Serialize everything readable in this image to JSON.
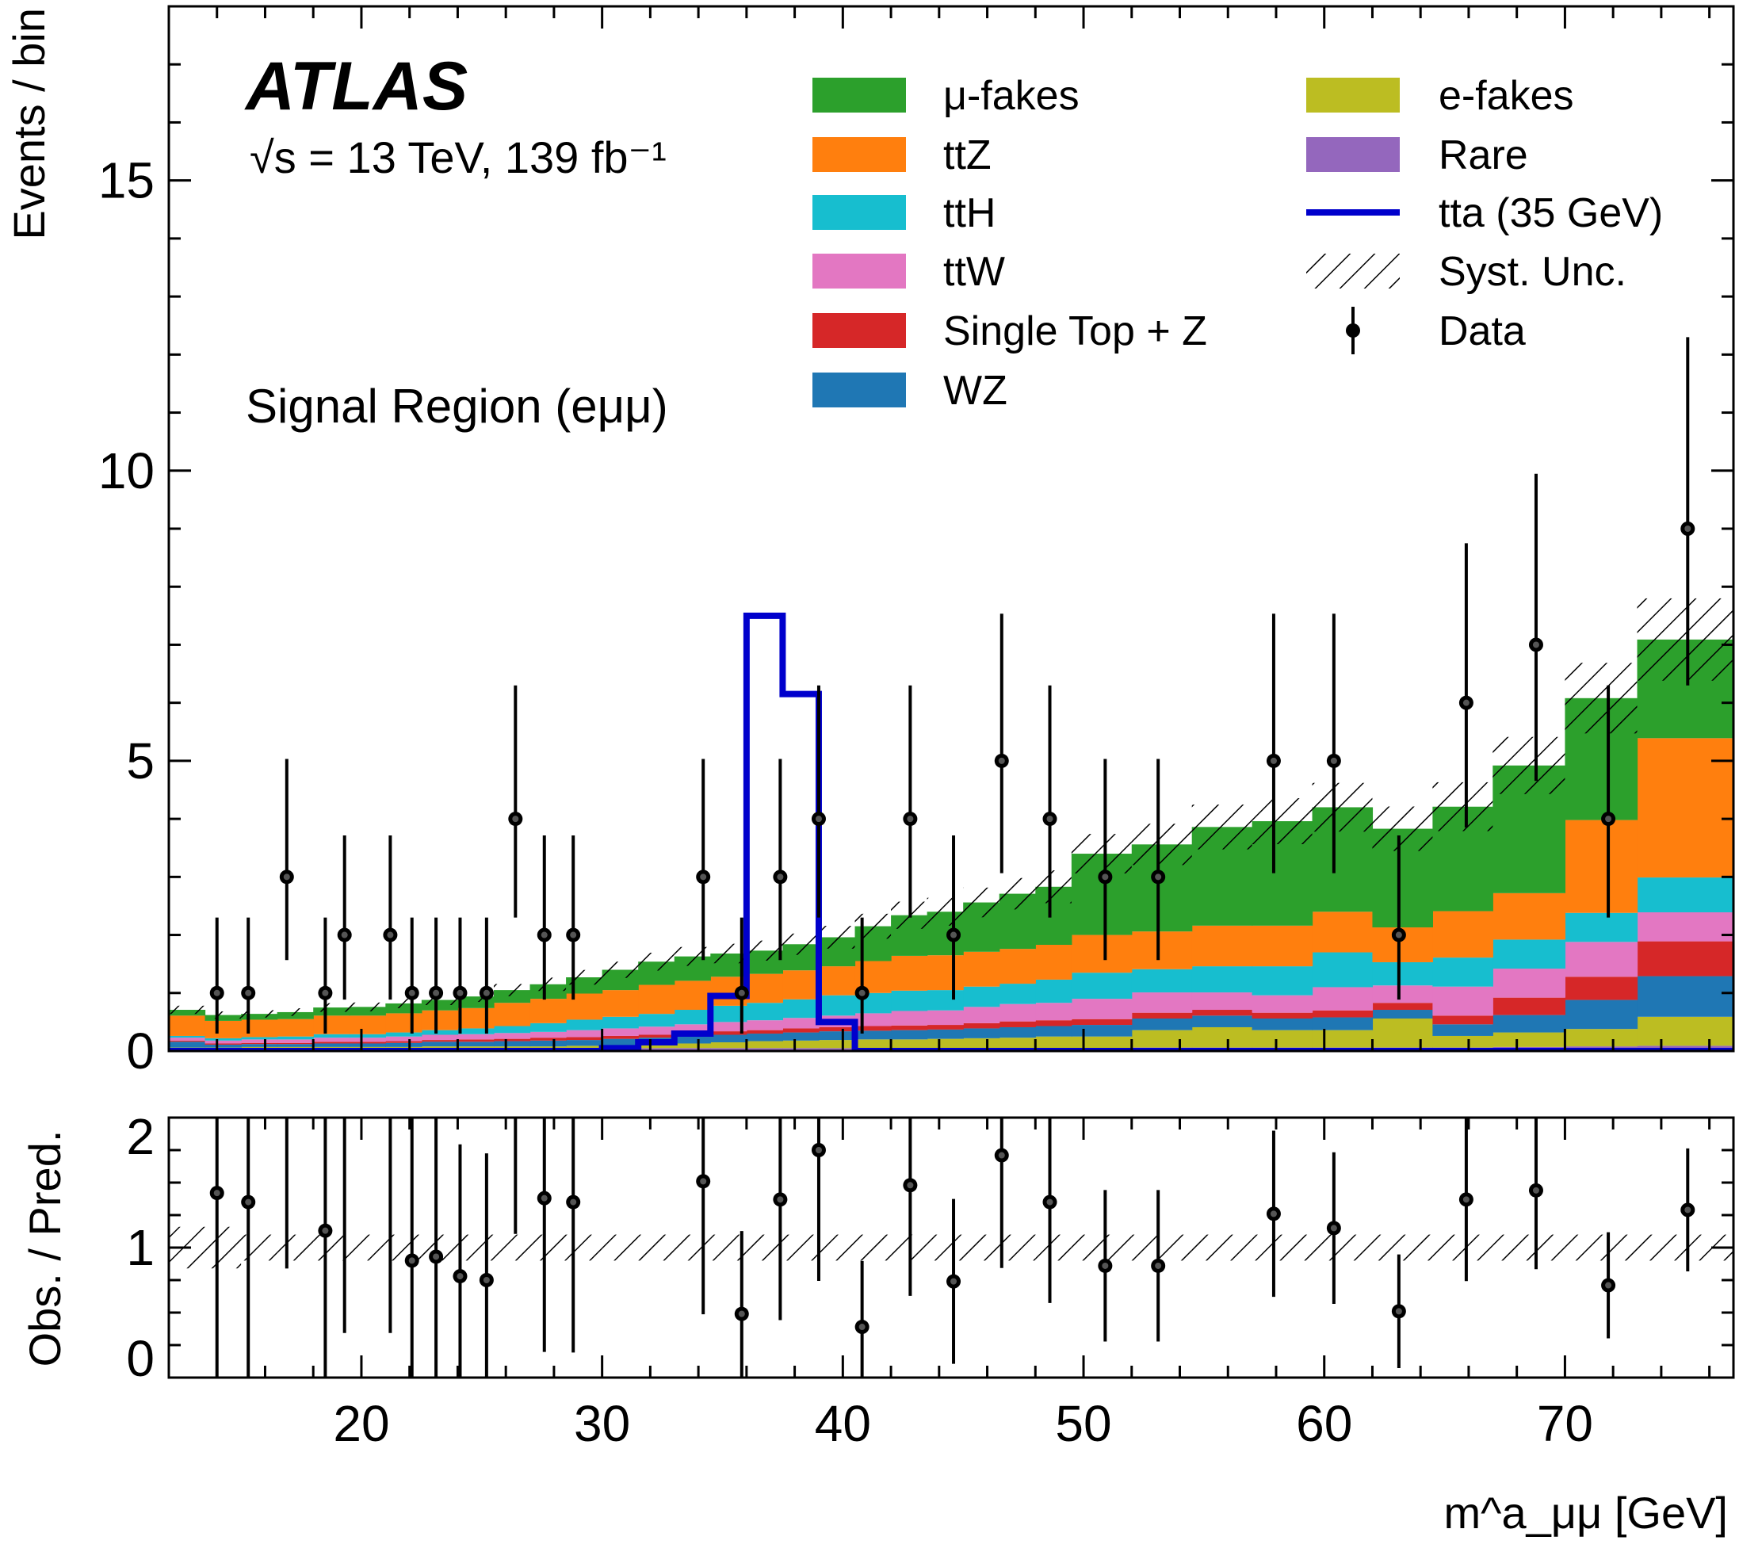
{
  "chart_data": {
    "type": "bar",
    "experiment": "ATLAS",
    "energy_label": "√s = 13 TeV, 139 fb⁻¹",
    "region_label": "Signal Region (eμμ)",
    "xlabel": "m^a_μμ [GeV]",
    "ylabel": "Events / bin",
    "ratio_ylabel": "Obs. / Pred.",
    "xlim": [
      12,
      77
    ],
    "ylim": [
      0,
      18
    ],
    "ratio_ylim": [
      0,
      2
    ],
    "x_ticks": [
      20,
      30,
      40,
      50,
      60,
      70
    ],
    "y_ticks": [
      0,
      5,
      10,
      15
    ],
    "ratio_y_ticks": [
      0,
      1,
      2
    ],
    "bin_edges": [
      12,
      13.5,
      15,
      16.5,
      18,
      19.5,
      21,
      22.5,
      24,
      25.5,
      27,
      28.5,
      30,
      31.5,
      33,
      34.5,
      36,
      37.5,
      39,
      40.5,
      42,
      43.5,
      45,
      46.5,
      48,
      49.5,
      52,
      54.5,
      57,
      59.5,
      62,
      64.5,
      67,
      70,
      73,
      77
    ],
    "series": [
      {
        "name": "Rare",
        "color": "#9467bd",
        "values": [
          0.05,
          0.05,
          0.05,
          0.05,
          0.05,
          0.05,
          0.05,
          0.05,
          0.05,
          0.05,
          0.05,
          0.05,
          0.05,
          0.05,
          0.05,
          0.05,
          0.05,
          0.05,
          0.05,
          0.05,
          0.05,
          0.05,
          0.05,
          0.05,
          0.05,
          0.05,
          0.06,
          0.06,
          0.06,
          0.06,
          0.06,
          0.06,
          0.07,
          0.08,
          0.09
        ]
      },
      {
        "name": "e-fakes",
        "color": "#bcbd22",
        "values": [
          0.01,
          0.01,
          0.02,
          0.02,
          0.02,
          0.02,
          0.02,
          0.03,
          0.03,
          0.03,
          0.03,
          0.04,
          0.05,
          0.06,
          0.08,
          0.1,
          0.12,
          0.13,
          0.14,
          0.15,
          0.15,
          0.16,
          0.17,
          0.18,
          0.2,
          0.2,
          0.3,
          0.35,
          0.3,
          0.3,
          0.5,
          0.2,
          0.25,
          0.3,
          0.5
        ]
      },
      {
        "name": "WZ",
        "color": "#1f77b4",
        "values": [
          0.1,
          0.05,
          0.05,
          0.05,
          0.06,
          0.06,
          0.07,
          0.08,
          0.08,
          0.09,
          0.1,
          0.1,
          0.11,
          0.12,
          0.12,
          0.13,
          0.13,
          0.14,
          0.15,
          0.15,
          0.16,
          0.16,
          0.17,
          0.18,
          0.18,
          0.2,
          0.2,
          0.2,
          0.2,
          0.22,
          0.15,
          0.2,
          0.3,
          0.5,
          0.7
        ]
      },
      {
        "name": "Single Top + Z",
        "color": "#d62728",
        "values": [
          0.02,
          0.02,
          0.02,
          0.02,
          0.03,
          0.03,
          0.03,
          0.03,
          0.04,
          0.04,
          0.05,
          0.05,
          0.05,
          0.05,
          0.06,
          0.06,
          0.06,
          0.07,
          0.07,
          0.08,
          0.08,
          0.08,
          0.09,
          0.1,
          0.1,
          0.1,
          0.1,
          0.1,
          0.1,
          0.12,
          0.12,
          0.15,
          0.3,
          0.4,
          0.6
        ]
      },
      {
        "name": "ttW",
        "color": "#e377c2",
        "values": [
          0.05,
          0.05,
          0.06,
          0.06,
          0.07,
          0.07,
          0.08,
          0.09,
          0.09,
          0.1,
          0.1,
          0.12,
          0.13,
          0.14,
          0.15,
          0.16,
          0.17,
          0.18,
          0.2,
          0.22,
          0.25,
          0.25,
          0.28,
          0.3,
          0.3,
          0.35,
          0.35,
          0.3,
          0.3,
          0.4,
          0.3,
          0.5,
          0.5,
          0.6,
          0.5
        ]
      },
      {
        "name": "ttH",
        "color": "#17becf",
        "values": [
          0.03,
          0.04,
          0.04,
          0.05,
          0.06,
          0.06,
          0.07,
          0.08,
          0.1,
          0.12,
          0.15,
          0.18,
          0.2,
          0.22,
          0.25,
          0.28,
          0.3,
          0.32,
          0.35,
          0.35,
          0.35,
          0.35,
          0.35,
          0.35,
          0.4,
          0.45,
          0.4,
          0.45,
          0.5,
          0.6,
          0.4,
          0.5,
          0.5,
          0.5,
          0.6
        ]
      },
      {
        "name": "ttZ",
        "color": "#ff7f0e",
        "values": [
          0.35,
          0.3,
          0.3,
          0.3,
          0.32,
          0.32,
          0.33,
          0.34,
          0.35,
          0.4,
          0.42,
          0.45,
          0.46,
          0.5,
          0.5,
          0.5,
          0.5,
          0.5,
          0.5,
          0.55,
          0.6,
          0.6,
          0.6,
          0.6,
          0.6,
          0.65,
          0.65,
          0.7,
          0.7,
          0.7,
          0.6,
          0.8,
          0.8,
          1.6,
          2.4
        ]
      },
      {
        "name": "μ-fakes",
        "color": "#2ca02c",
        "values": [
          0.1,
          0.1,
          0.1,
          0.12,
          0.14,
          0.15,
          0.17,
          0.18,
          0.2,
          0.22,
          0.25,
          0.28,
          0.35,
          0.4,
          0.42,
          0.4,
          0.4,
          0.45,
          0.5,
          0.6,
          0.7,
          0.75,
          0.85,
          0.95,
          1.0,
          1.4,
          1.5,
          1.7,
          1.8,
          1.8,
          1.7,
          1.8,
          2.2,
          2.1,
          1.7
        ]
      }
    ],
    "signal": {
      "name": "tta (35 GeV)",
      "color": "#0000cc",
      "values": [
        0,
        0,
        0,
        0,
        0,
        0,
        0,
        0,
        0,
        0,
        0,
        0,
        0.05,
        0.15,
        0.3,
        0.95,
        7.5,
        6.15,
        0.5,
        0,
        0,
        0,
        0,
        0,
        0,
        0,
        0,
        0,
        0,
        0,
        0,
        0,
        0,
        0,
        0
      ]
    },
    "syst_unc_label": "Syst. Unc.",
    "syst_unc_fraction": 0.1,
    "data": {
      "name": "Data",
      "x": [
        14,
        15.3,
        16.9,
        18.5,
        19.3,
        21.2,
        22.1,
        23.1,
        24.1,
        25.2,
        26.4,
        27.6,
        28.8,
        34.2,
        35.8,
        37.4,
        39,
        40.8,
        42.8,
        44.6,
        46.6,
        48.6,
        50.9,
        53.1,
        57.9,
        60.4,
        63.1,
        65.9,
        68.8,
        71.8,
        75.1
      ],
      "y": [
        1,
        1,
        3,
        1,
        2,
        2,
        1,
        1,
        1,
        1,
        4,
        2,
        2,
        3,
        1,
        3,
        4,
        1,
        4,
        2,
        5,
        4,
        3,
        3,
        5,
        5,
        2,
        6,
        7,
        4,
        9
      ]
    },
    "ratio": {
      "x": [
        14,
        15.3,
        16.9,
        18.5,
        19.3,
        21.2,
        22.1,
        23.1,
        24.1,
        25.2,
        26.4,
        27.6,
        28.8,
        34.2,
        35.8,
        37.4,
        39,
        40.8,
        42.8,
        44.6,
        46.6,
        48.6,
        50.9,
        53.1,
        57.9,
        60.4,
        63.1,
        65.9,
        68.8,
        71.8,
        75.1
      ],
      "y": [
        1.42,
        1.35,
        2.6,
        1.13,
        2.4,
        2.4,
        0.9,
        0.93,
        0.78,
        0.75,
        2.6,
        1.38,
        1.35,
        1.51,
        0.49,
        1.37,
        1.75,
        0.39,
        1.48,
        0.74,
        1.71,
        1.35,
        0.86,
        0.86,
        1.26,
        1.15,
        0.51,
        1.37,
        1.44,
        0.71,
        1.29
      ]
    },
    "legend": {
      "left": [
        "μ-fakes",
        "ttZ",
        "ttH",
        "ttW",
        "Single Top + Z",
        "WZ"
      ],
      "right": [
        "e-fakes",
        "Rare",
        "tta (35 GeV)",
        "Syst. Unc.",
        "Data"
      ],
      "placement": "top-right"
    }
  }
}
